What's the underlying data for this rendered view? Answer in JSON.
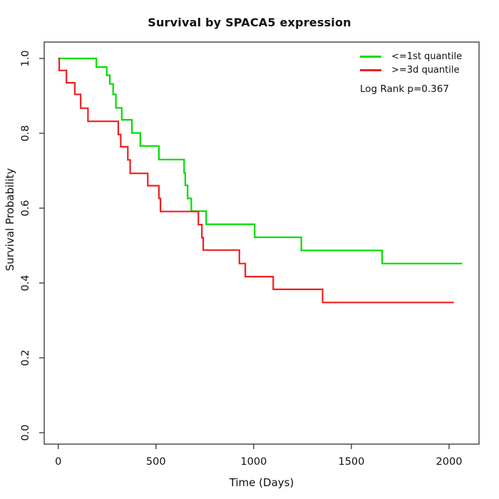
{
  "title": "Survival by SPACA5 expression",
  "x_axis": {
    "label": "Time (Days)"
  },
  "y_axis": {
    "label": "Survival Probability"
  },
  "legend": {
    "items": [
      {
        "label": "<=1st quantile",
        "color": "#00dd00"
      },
      {
        "label": ">=3d quantile",
        "color": "#ee2020"
      }
    ],
    "note": "Log Rank p=0.367"
  },
  "chart_data": {
    "type": "line",
    "subtype": "kaplan-meier-step-curve",
    "title": "Survival by SPACA5 expression",
    "xlabel": "Time (Days)",
    "ylabel": "Survival Probability",
    "xlim": [
      0,
      2000
    ],
    "ylim": [
      0.0,
      1.0
    ],
    "x_ticks": [
      0,
      500,
      1000,
      1500,
      2000
    ],
    "y_ticks": [
      0.0,
      0.2,
      0.4,
      0.6,
      0.8,
      1.0
    ],
    "grid": false,
    "legend_position": "top-right",
    "annotation": "Log Rank p=0.367",
    "series": [
      {
        "name": "<=1st quantile",
        "color": "#00dd00",
        "end_time": 2067,
        "steps": [
          [
            0,
            1.0
          ],
          [
            195,
            0.977
          ],
          [
            248,
            0.955
          ],
          [
            264,
            0.932
          ],
          [
            281,
            0.904
          ],
          [
            295,
            0.868
          ],
          [
            325,
            0.836
          ],
          [
            377,
            0.801
          ],
          [
            420,
            0.766
          ],
          [
            515,
            0.73
          ],
          [
            644,
            0.694
          ],
          [
            650,
            0.661
          ],
          [
            662,
            0.626
          ],
          [
            681,
            0.592
          ],
          [
            757,
            0.557
          ],
          [
            1005,
            0.522
          ],
          [
            1244,
            0.487
          ],
          [
            1657,
            0.452
          ]
        ]
      },
      {
        "name": ">=3d quantile",
        "color": "#ee2020",
        "end_time": 2024,
        "steps": [
          [
            0,
            1.0
          ],
          [
            5,
            0.968
          ],
          [
            42,
            0.935
          ],
          [
            85,
            0.904
          ],
          [
            115,
            0.867
          ],
          [
            152,
            0.832
          ],
          [
            307,
            0.797
          ],
          [
            320,
            0.764
          ],
          [
            356,
            0.729
          ],
          [
            368,
            0.693
          ],
          [
            458,
            0.66
          ],
          [
            515,
            0.626
          ],
          [
            523,
            0.591
          ],
          [
            717,
            0.556
          ],
          [
            735,
            0.521
          ],
          [
            742,
            0.488
          ],
          [
            927,
            0.452
          ],
          [
            957,
            0.417
          ],
          [
            1100,
            0.383
          ],
          [
            1353,
            0.348
          ]
        ]
      }
    ]
  }
}
